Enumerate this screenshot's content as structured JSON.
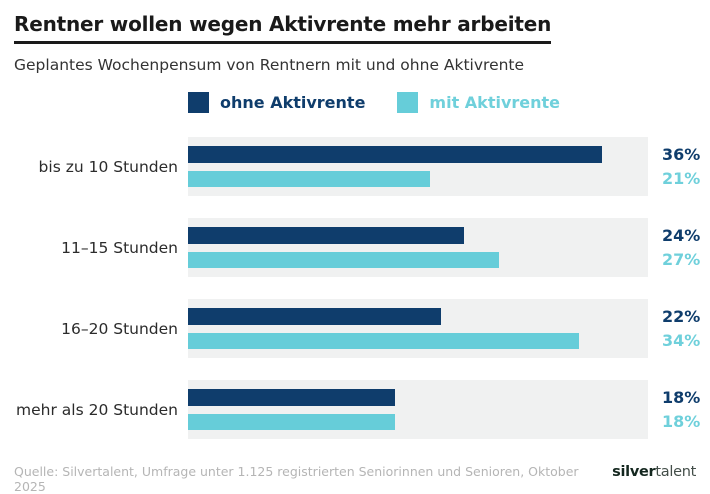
{
  "header": {
    "title": "Rentner wollen wegen Aktivrente mehr arbeiten",
    "subtitle": "Geplantes Wochenpensum von Rentnern mit und ohne Aktivrente"
  },
  "legend": [
    {
      "label": "ohne Aktivrente",
      "color": "#0f3d6c"
    },
    {
      "label": "mit Aktivrente",
      "color": "#66cdd9"
    }
  ],
  "rows": [
    {
      "category": "bis zu 10 Stunden",
      "ohne_label": "36%",
      "mit_label": "21%",
      "ohne_pct": 90,
      "mit_pct": 52.5
    },
    {
      "category": "11–15 Stunden",
      "ohne_label": "24%",
      "mit_label": "27%",
      "ohne_pct": 60,
      "mit_pct": 67.5
    },
    {
      "category": "16–20 Stunden",
      "ohne_label": "22%",
      "mit_label": "34%",
      "ohne_pct": 55,
      "mit_pct": 85
    },
    {
      "category": "mehr als 20 Stunden",
      "ohne_label": "18%",
      "mit_label": "18%",
      "ohne_pct": 45,
      "mit_pct": 45
    }
  ],
  "footer": {
    "source": "Quelle: Silvertalent, Umfrage unter 1.125 registrierten Seniorinnen und Senioren, Oktober 2025",
    "logo_bold": "silver",
    "logo_light": "talent"
  },
  "colors": {
    "ohne_bar": "#0f3d6c",
    "mit_bar": "#66cdd9",
    "mit_value_text": "#6fd0db",
    "track_background": "#f0f1f1",
    "title_text": "#1a1a1a",
    "subtitle_text": "#333333",
    "source_text": "#b5b5b5"
  },
  "chart_data": {
    "type": "bar",
    "orientation": "horizontal",
    "title": "Rentner wollen wegen Aktivrente mehr arbeiten",
    "subtitle": "Geplantes Wochenpensum von Rentnern mit und ohne Aktivrente",
    "categories": [
      "bis zu 10 Stunden",
      "11–15 Stunden",
      "16–20 Stunden",
      "mehr als 20 Stunden"
    ],
    "series": [
      {
        "name": "ohne Aktivrente",
        "color": "#0f3d6c",
        "values": [
          36,
          24,
          22,
          18
        ]
      },
      {
        "name": "mit Aktivrente",
        "color": "#66cdd9",
        "values": [
          21,
          27,
          34,
          18
        ]
      }
    ],
    "value_suffix": "%",
    "xlim": [
      0,
      40
    ],
    "grid": false,
    "legend_position": "top",
    "data_labels": "right"
  }
}
